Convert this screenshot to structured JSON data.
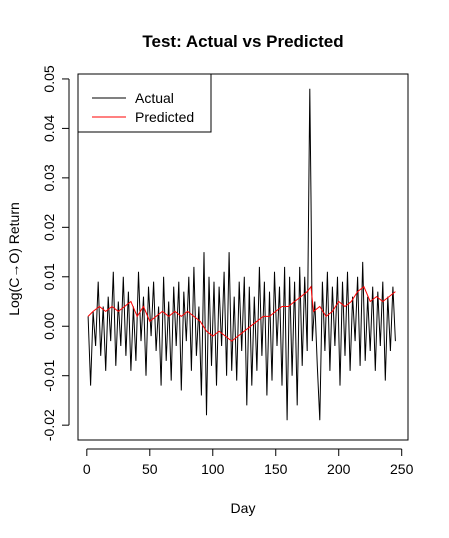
{
  "chart_data": {
    "type": "line",
    "title": "Test: Actual vs Predicted",
    "xlabel": "Day",
    "ylabel": "Log(C→O) Return",
    "xlim": [
      -7,
      255
    ],
    "ylim": [
      -0.023,
      0.051
    ],
    "xticks": [
      0,
      50,
      100,
      150,
      200,
      250
    ],
    "xtick_labels": [
      "0",
      "50",
      "100",
      "150",
      "200",
      "250"
    ],
    "yticks": [
      -0.02,
      -0.01,
      0.0,
      0.01,
      0.02,
      0.03,
      0.04,
      0.05
    ],
    "ytick_labels": [
      "-0.02",
      "-0.01",
      "0.00",
      "0.01",
      "0.02",
      "0.03",
      "0.04",
      "0.05"
    ],
    "grid": false,
    "legend_position": "top-left",
    "series": [
      {
        "name": "Actual",
        "color": "#000000",
        "x": [
          1,
          3,
          5,
          7,
          9,
          11,
          13,
          15,
          17,
          19,
          21,
          23,
          25,
          27,
          29,
          31,
          33,
          35,
          37,
          39,
          41,
          43,
          45,
          47,
          49,
          51,
          53,
          55,
          57,
          59,
          61,
          63,
          65,
          67,
          69,
          71,
          73,
          75,
          77,
          79,
          81,
          83,
          85,
          87,
          89,
          91,
          93,
          95,
          97,
          99,
          101,
          103,
          105,
          107,
          109,
          111,
          113,
          115,
          117,
          119,
          121,
          123,
          125,
          127,
          129,
          131,
          133,
          135,
          137,
          139,
          141,
          143,
          145,
          147,
          149,
          151,
          153,
          155,
          157,
          159,
          161,
          163,
          165,
          167,
          169,
          171,
          173,
          175,
          177,
          178,
          179,
          181,
          183,
          185,
          187,
          189,
          191,
          193,
          195,
          197,
          199,
          201,
          203,
          205,
          207,
          209,
          211,
          213,
          215,
          217,
          219,
          221,
          223,
          225,
          227,
          229,
          231,
          233,
          235,
          237,
          239,
          241,
          243,
          245
        ],
        "y": [
          0.002,
          -0.012,
          0.003,
          -0.004,
          0.009,
          -0.006,
          0.004,
          -0.009,
          0.006,
          -0.003,
          0.011,
          -0.008,
          0.005,
          -0.004,
          0.01,
          -0.006,
          0.007,
          -0.009,
          0.004,
          -0.007,
          0.011,
          -0.003,
          0.006,
          -0.01,
          0.008,
          -0.002,
          0.009,
          -0.005,
          0.004,
          -0.012,
          0.01,
          -0.007,
          0.005,
          -0.011,
          0.008,
          -0.004,
          0.009,
          -0.013,
          0.007,
          -0.003,
          0.01,
          -0.009,
          0.012,
          -0.006,
          0.004,
          -0.014,
          0.015,
          -0.018,
          0.01,
          -0.008,
          0.009,
          -0.012,
          0.008,
          -0.004,
          0.011,
          -0.01,
          0.015,
          -0.009,
          0.006,
          -0.011,
          0.009,
          -0.005,
          0.01,
          -0.016,
          0.008,
          -0.012,
          0.006,
          -0.009,
          0.012,
          -0.006,
          0.009,
          -0.014,
          0.007,
          -0.011,
          0.011,
          -0.004,
          0.008,
          -0.012,
          0.012,
          -0.019,
          0.01,
          -0.01,
          0.009,
          -0.016,
          0.012,
          -0.008,
          0.01,
          -0.005,
          0.048,
          0.026,
          -0.003,
          0.005,
          -0.008,
          -0.019,
          0.009,
          -0.005,
          0.011,
          -0.009,
          0.008,
          -0.004,
          0.01,
          -0.012,
          0.009,
          -0.006,
          0.011,
          -0.009,
          0.006,
          -0.003,
          0.01,
          -0.008,
          0.013,
          -0.007,
          0.006,
          -0.005,
          0.008,
          -0.009,
          0.007,
          -0.004,
          0.009,
          -0.011,
          0.006,
          -0.005,
          0.008,
          -0.003
        ]
      },
      {
        "name": "Predicted",
        "color": "#ff0000",
        "x": [
          1,
          5,
          10,
          15,
          20,
          25,
          30,
          35,
          40,
          45,
          50,
          55,
          60,
          65,
          70,
          75,
          80,
          85,
          90,
          95,
          100,
          105,
          110,
          115,
          120,
          125,
          130,
          135,
          140,
          145,
          150,
          155,
          160,
          165,
          170,
          175,
          178,
          180,
          185,
          190,
          195,
          200,
          205,
          210,
          215,
          220,
          225,
          230,
          235,
          240,
          245
        ],
        "y": [
          0.002,
          0.003,
          0.004,
          0.003,
          0.004,
          0.003,
          0.004,
          0.005,
          0.002,
          0.004,
          0.001,
          0.002,
          0.003,
          0.002,
          0.003,
          0.002,
          0.003,
          0.002,
          0.001,
          -0.001,
          -0.002,
          -0.001,
          -0.002,
          -0.003,
          -0.002,
          -0.001,
          0.0,
          0.001,
          0.002,
          0.002,
          0.003,
          0.004,
          0.004,
          0.005,
          0.006,
          0.007,
          0.008,
          0.003,
          0.004,
          0.002,
          0.003,
          0.005,
          0.004,
          0.005,
          0.007,
          0.008,
          0.005,
          0.006,
          0.005,
          0.006,
          0.007
        ]
      }
    ]
  }
}
